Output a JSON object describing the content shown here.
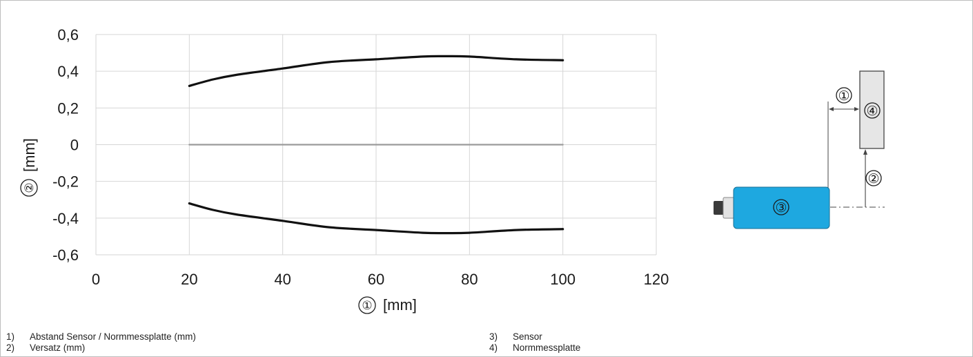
{
  "chart_data": {
    "type": "line",
    "xlabel_num": "①",
    "xlabel_unit": "[mm]",
    "ylabel_num": "②",
    "ylabel_unit": "[mm]",
    "xlim": [
      0,
      120
    ],
    "ylim": [
      -0.6,
      0.6
    ],
    "xticks": [
      0,
      20,
      40,
      60,
      80,
      100,
      120
    ],
    "xtick_labels": [
      "0",
      "20",
      "40",
      "60",
      "80",
      "100",
      "120"
    ],
    "yticks": [
      0.6,
      0.4,
      0.2,
      0,
      -0.2,
      -0.4,
      -0.6
    ],
    "ytick_labels": [
      "0,6",
      "0,4",
      "0,2",
      "0",
      "-0,2",
      "-0,4",
      "-0,6"
    ],
    "grid": true,
    "series": [
      {
        "color": "#111111",
        "x": [
          20,
          25,
          30,
          40,
          50,
          60,
          70,
          75,
          80,
          90,
          100
        ],
        "y": [
          0.32,
          0.355,
          0.38,
          0.415,
          0.45,
          0.465,
          0.48,
          0.482,
          0.48,
          0.465,
          0.46
        ]
      },
      {
        "color": "#111111",
        "x": [
          20,
          25,
          30,
          40,
          50,
          60,
          70,
          75,
          80,
          90,
          100
        ],
        "y": [
          -0.32,
          -0.355,
          -0.38,
          -0.415,
          -0.45,
          -0.465,
          -0.48,
          -0.482,
          -0.48,
          -0.465,
          -0.46
        ]
      },
      {
        "color": "#9a9a9a",
        "x": [
          20,
          100
        ],
        "y": [
          0,
          0
        ]
      }
    ]
  },
  "diagram": {
    "distance_label": "①",
    "offset_label": "②",
    "sensor_label": "③",
    "plate_label": "④",
    "sensor_color": "#1ea8e0",
    "plate_color": "#e6e6e6"
  },
  "legend_left": [
    {
      "num": "1)",
      "text": "Abstand Sensor / Normmessplatte (mm)"
    },
    {
      "num": "2)",
      "text": "Versatz (mm)"
    }
  ],
  "legend_right": [
    {
      "num": "3)",
      "text": "Sensor"
    },
    {
      "num": "4)",
      "text": "Normmessplatte"
    }
  ]
}
